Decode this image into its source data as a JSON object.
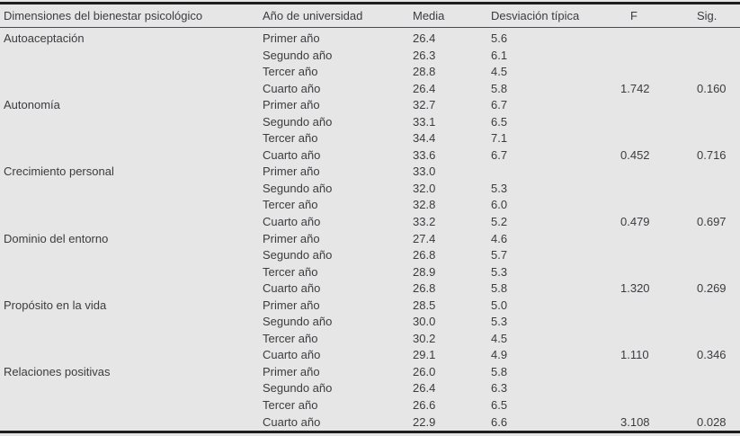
{
  "colors": {
    "background": "#e6e6e6",
    "text": "#3c3c40",
    "rule_heavy": "#1f1f22",
    "rule_light": "#4a4a4e"
  },
  "table": {
    "columns": [
      "Dimensiones del bienestar psicológico",
      "Año de universidad",
      "Media",
      "Desviación típica",
      "F",
      "Sig."
    ],
    "groups": [
      {
        "dimension": "Autoaceptación",
        "rows": [
          {
            "year": "Primer año",
            "media": "26.4",
            "sd": "5.6",
            "f": "",
            "sig": ""
          },
          {
            "year": "Segundo año",
            "media": "26.3",
            "sd": "6.1",
            "f": "",
            "sig": ""
          },
          {
            "year": "Tercer año",
            "media": "28.8",
            "sd": "4.5",
            "f": "",
            "sig": ""
          },
          {
            "year": "Cuarto año",
            "media": "26.4",
            "sd": "5.8",
            "f": "1.742",
            "sig": "0.160"
          }
        ]
      },
      {
        "dimension": "Autonomía",
        "rows": [
          {
            "year": "Primer año",
            "media": "32.7",
            "sd": "6.7",
            "f": "",
            "sig": ""
          },
          {
            "year": "Segundo año",
            "media": "33.1",
            "sd": "6.5",
            "f": "",
            "sig": ""
          },
          {
            "year": "Tercer año",
            "media": "34.4",
            "sd": "7.1",
            "f": "",
            "sig": ""
          },
          {
            "year": "Cuarto año",
            "media": "33.6",
            "sd": "6.7",
            "f": "0.452",
            "sig": "0.716"
          }
        ]
      },
      {
        "dimension": "Crecimiento personal",
        "rows": [
          {
            "year": "Primer año",
            "media": "33.0",
            "sd": "",
            "f": "",
            "sig": ""
          },
          {
            "year": "Segundo año",
            "media": "32.0",
            "sd": "5.3",
            "f": "",
            "sig": ""
          },
          {
            "year": "Tercer año",
            "media": "32.8",
            "sd": "6.0",
            "f": "",
            "sig": ""
          },
          {
            "year": "Cuarto año",
            "media": "33.2",
            "sd": "5.2",
            "f": "0.479",
            "sig": "0.697"
          }
        ]
      },
      {
        "dimension": "Dominio del entorno",
        "rows": [
          {
            "year": "Primer año",
            "media": "27.4",
            "sd": "4.6",
            "f": "",
            "sig": ""
          },
          {
            "year": "Segundo año",
            "media": "26.8",
            "sd": "5.7",
            "f": "",
            "sig": ""
          },
          {
            "year": "Tercer año",
            "media": "28.9",
            "sd": "5.3",
            "f": "",
            "sig": ""
          },
          {
            "year": "Cuarto año",
            "media": "26.8",
            "sd": "5.8",
            "f": "1.320",
            "sig": "0.269"
          }
        ]
      },
      {
        "dimension": "Propósito en la vida",
        "rows": [
          {
            "year": "Primer año",
            "media": "28.5",
            "sd": "5.0",
            "f": "",
            "sig": ""
          },
          {
            "year": "Segundo año",
            "media": "30.0",
            "sd": "5.3",
            "f": "",
            "sig": ""
          },
          {
            "year": "Tercer año",
            "media": "30.2",
            "sd": "4.5",
            "f": "",
            "sig": ""
          },
          {
            "year": "Cuarto año",
            "media": "29.1",
            "sd": "4.9",
            "f": "1.110",
            "sig": "0.346"
          }
        ]
      },
      {
        "dimension": "Relaciones positivas",
        "rows": [
          {
            "year": "Primer año",
            "media": "26.0",
            "sd": "5.8",
            "f": "",
            "sig": ""
          },
          {
            "year": "Segundo año",
            "media": "26.4",
            "sd": "6.3",
            "f": "",
            "sig": ""
          },
          {
            "year": "Tercer año",
            "media": "26.6",
            "sd": "6.5",
            "f": "",
            "sig": ""
          },
          {
            "year": "Cuarto año",
            "media": "22.9",
            "sd": "6.6",
            "f": "3.108",
            "sig": "0.028"
          }
        ]
      }
    ]
  }
}
